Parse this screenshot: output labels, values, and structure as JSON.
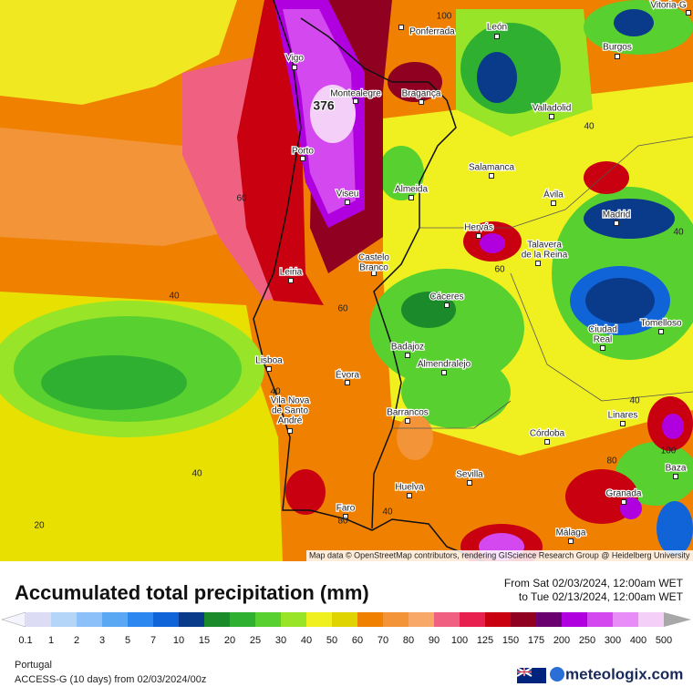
{
  "map": {
    "attribution": "Map data © OpenStreetMap contributors, rendering GIScience Research Group @ Heidelberg University",
    "cities": [
      {
        "lines": [
          "Vitoria-G"
        ]
      },
      {
        "lines": [
          "Ponferrada"
        ]
      },
      {
        "lines": [
          "León"
        ]
      },
      {
        "lines": [
          "Burgos"
        ]
      },
      {
        "lines": [
          "Vigo"
        ]
      },
      {
        "lines": [
          "Montealegre"
        ]
      },
      {
        "lines": [
          "Bragança"
        ]
      },
      {
        "lines": [
          "Valladolid"
        ]
      },
      {
        "lines": [
          "Porto"
        ]
      },
      {
        "lines": [
          "Salamanca"
        ]
      },
      {
        "lines": [
          "Viseu"
        ]
      },
      {
        "lines": [
          "Almeida"
        ]
      },
      {
        "lines": [
          "Ávila"
        ]
      },
      {
        "lines": [
          "Madrid"
        ]
      },
      {
        "lines": [
          "Hervás"
        ]
      },
      {
        "lines": [
          "Talavera",
          "de la Reina"
        ]
      },
      {
        "lines": [
          "Castelo",
          "Branco"
        ]
      },
      {
        "lines": [
          "Leiria"
        ]
      },
      {
        "lines": [
          "Cáceres"
        ]
      },
      {
        "lines": [
          "Ciudad",
          "Real"
        ]
      },
      {
        "lines": [
          "Tomelloso"
        ]
      },
      {
        "lines": [
          "Badajoz"
        ]
      },
      {
        "lines": [
          "Lisboa"
        ]
      },
      {
        "lines": [
          "Almendralejo"
        ]
      },
      {
        "lines": [
          "Évora"
        ]
      },
      {
        "lines": [
          "Vila Nova",
          "de Santo",
          "André"
        ]
      },
      {
        "lines": [
          "Barrancos"
        ]
      },
      {
        "lines": [
          "Linares"
        ]
      },
      {
        "lines": [
          "Córdoba"
        ]
      },
      {
        "lines": [
          "Baza"
        ]
      },
      {
        "lines": [
          "Sevilla"
        ]
      },
      {
        "lines": [
          "Granada"
        ]
      },
      {
        "lines": [
          "Huelva"
        ]
      },
      {
        "lines": [
          "Faro"
        ]
      },
      {
        "lines": [
          "Málaga"
        ]
      }
    ],
    "max_label": 376,
    "contour_labels": [
      100,
      40,
      60,
      60,
      40,
      40,
      60,
      40,
      40,
      100,
      80,
      40,
      20,
      80,
      40
    ]
  },
  "header": {
    "title": "Accumulated total precipitation (mm)",
    "date_from": "From Sat 02/03/2024, 12:00am WET",
    "date_to": "to Tue 02/13/2024, 12:00am WET"
  },
  "legend": {
    "under_color": "#f4f4fc",
    "over_color": "#a8a8a8",
    "ticks": [
      0.1,
      1,
      2,
      3,
      5,
      7,
      10,
      15,
      20,
      25,
      30,
      40,
      50,
      60,
      70,
      80,
      90,
      100,
      125,
      150,
      175,
      200,
      250,
      300,
      400,
      500
    ],
    "colors": [
      "#dcdcf4",
      "#b4d4f8",
      "#8cc0f8",
      "#5aa8f4",
      "#2c88f0",
      "#1064d8",
      "#0a3a8a",
      "#1a8a2a",
      "#30b030",
      "#58d030",
      "#98e428",
      "#f0f020",
      "#e0d400",
      "#f08000",
      "#f49438",
      "#f8a868",
      "#f06080",
      "#e82050",
      "#c80010",
      "#900020",
      "#6a0070",
      "#b000e0",
      "#d448f0",
      "#e88cf8",
      "#f4d0f8"
    ]
  },
  "footer": {
    "region": "Portugal",
    "model": "ACCESS-G (10 days) from 02/03/2024/00z",
    "brand": "meteologix.com"
  }
}
